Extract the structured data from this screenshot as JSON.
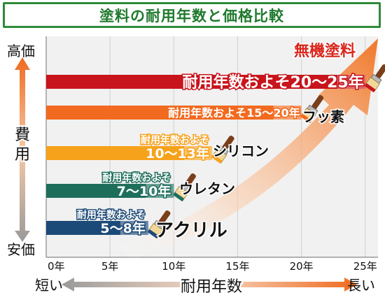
{
  "title": "塗料の耐用年数と価格比較",
  "colors": {
    "accent_green": "#2f8a3a",
    "accent_red": "#d9261c",
    "arrow_orange": "#f0782a"
  },
  "y_axis": {
    "label": "費用",
    "top": "高価",
    "bottom": "安価"
  },
  "x_axis": {
    "label": "耐用年数",
    "left": "短い",
    "right": "長い",
    "unit": "年"
  },
  "chart_data": {
    "type": "bar",
    "orientation": "horizontal",
    "xlim": [
      0,
      26
    ],
    "xticks": [
      0,
      5,
      10,
      15,
      20,
      25
    ],
    "tick_suffix": "年",
    "grid": true,
    "series": [
      {
        "name": "無機塗料",
        "ranges": [
          20,
          25
        ],
        "label_lines": [
          "耐用年数およそ20～25年"
        ],
        "color": "#c8141c"
      },
      {
        "name": "フッ素",
        "ranges": [
          15,
          20
        ],
        "label_lines": [
          "耐用年数およそ15～20年"
        ],
        "color": "#f26a1f"
      },
      {
        "name": "シリコン",
        "ranges": [
          10,
          13
        ],
        "label_lines": [
          "耐用年数およそ",
          "10～13年"
        ],
        "color": "#f7a21b"
      },
      {
        "name": "ウレタン",
        "ranges": [
          7,
          10
        ],
        "label_lines": [
          "耐用年数およそ",
          "7～10年"
        ],
        "color": "#1e6e5c"
      },
      {
        "name": "アクリル",
        "ranges": [
          5,
          8
        ],
        "label_lines": [
          "耐用年数およそ",
          "5～8年"
        ],
        "color": "#1c4a78"
      }
    ]
  }
}
